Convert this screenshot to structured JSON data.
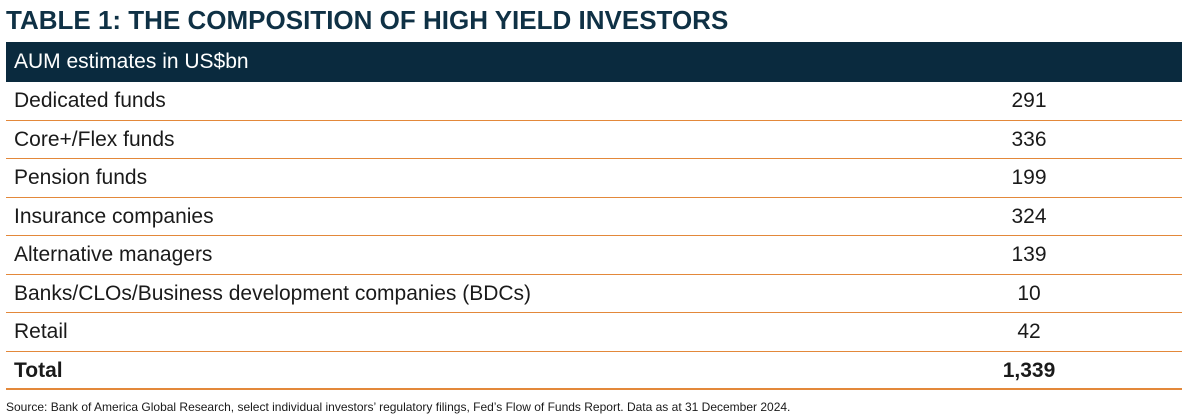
{
  "title": "TABLE 1: THE COMPOSITION OF HIGH YIELD INVESTORS",
  "table": {
    "header": "AUM estimates in US$bn",
    "rows": [
      {
        "label": "Dedicated funds",
        "value": "291"
      },
      {
        "label": "Core+/Flex funds",
        "value": "336"
      },
      {
        "label": "Pension funds",
        "value": "199"
      },
      {
        "label": "Insurance companies",
        "value": "324"
      },
      {
        "label": "Alternative managers",
        "value": "139"
      },
      {
        "label": "Banks/CLOs/Business development companies (BDCs)",
        "value": "10"
      },
      {
        "label": "Retail",
        "value": "42"
      }
    ],
    "total": {
      "label": "Total",
      "value": "1,339"
    }
  },
  "source": "Source: Bank of America Global Research, select individual investors’ regulatory filings, Fed’s Flow of Funds Report. Data as at 31 December 2024.",
  "colors": {
    "title": "#0f3145",
    "header_bg": "#0a2a3e",
    "row_rule": "#e3883a"
  }
}
